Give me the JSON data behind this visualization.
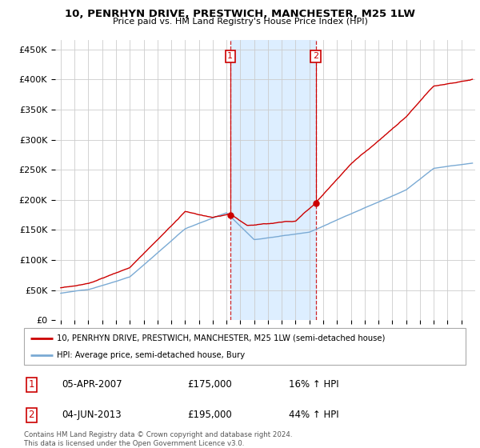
{
  "title": "10, PENRHYN DRIVE, PRESTWICH, MANCHESTER, M25 1LW",
  "subtitle": "Price paid vs. HM Land Registry's House Price Index (HPI)",
  "ylabel_ticks": [
    "£0",
    "£50K",
    "£100K",
    "£150K",
    "£200K",
    "£250K",
    "£300K",
    "£350K",
    "£400K",
    "£450K"
  ],
  "ytick_values": [
    0,
    50000,
    100000,
    150000,
    200000,
    250000,
    300000,
    350000,
    400000,
    450000
  ],
  "ylim": [
    0,
    465000
  ],
  "sale1_date_num": 2007.27,
  "sale1_price": 175000,
  "sale2_date_num": 2013.45,
  "sale2_price": 195000,
  "sale1_date_str": "05-APR-2007",
  "sale1_pct": "16% ↑ HPI",
  "sale2_date_str": "04-JUN-2013",
  "sale2_pct": "44% ↑ HPI",
  "red_line_color": "#cc0000",
  "blue_line_color": "#7aaad4",
  "shade_color": "#ddeeff",
  "legend_red": "10, PENRHYN DRIVE, PRESTWICH, MANCHESTER, M25 1LW (semi-detached house)",
  "legend_blue": "HPI: Average price, semi-detached house, Bury",
  "footer": "Contains HM Land Registry data © Crown copyright and database right 2024.\nThis data is licensed under the Open Government Licence v3.0.",
  "grid_color": "#cccccc",
  "xmin": 1995,
  "xmax": 2024.5
}
